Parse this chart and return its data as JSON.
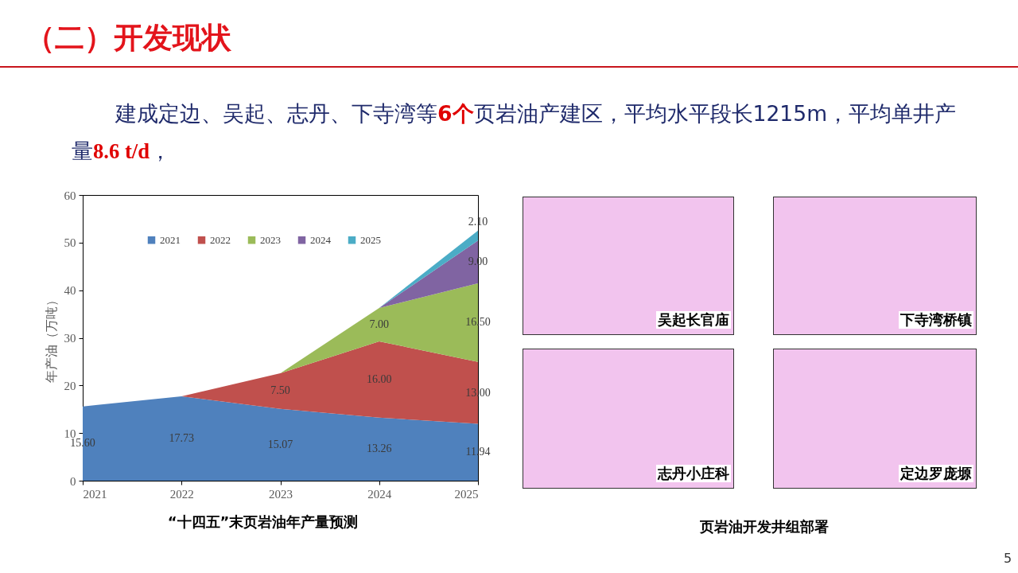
{
  "chart_data": {
    "type": "area",
    "title": "“十四五”末页岩油年产量预测",
    "ylabel": "年产油（万吨）",
    "x": [
      2021,
      2022,
      2023,
      2024,
      2025
    ],
    "xlim": [
      2021,
      2025
    ],
    "xticks": [
      2021,
      2022,
      2023,
      2024,
      2025
    ],
    "ylim": [
      0,
      60
    ],
    "yticks": [
      0,
      10,
      20,
      30,
      40,
      50,
      60
    ],
    "stacked": true,
    "legend": "top",
    "series": [
      {
        "name": "2021",
        "color": "#4f81bd",
        "values": [
          15.6,
          17.73,
          15.07,
          13.26,
          11.94
        ],
        "value_labels": [
          "15.60",
          "17.73",
          "15.07",
          "13.26",
          "11.94"
        ]
      },
      {
        "name": "2022",
        "color": "#c0504d",
        "values": [
          null,
          0,
          7.5,
          16,
          13
        ],
        "value_labels": [
          null,
          null,
          "7.50",
          "16.00",
          "13.00"
        ]
      },
      {
        "name": "2023",
        "color": "#9bbb59",
        "values": [
          null,
          null,
          0,
          7,
          16.5
        ],
        "value_labels": [
          null,
          null,
          null,
          "7.00",
          "16.50"
        ]
      },
      {
        "name": "2024",
        "color": "#8064a2",
        "values": [
          null,
          null,
          null,
          0,
          9
        ],
        "value_labels": [
          null,
          null,
          null,
          null,
          "9.00"
        ]
      },
      {
        "name": "2025",
        "color": "#4bacc6",
        "values": [
          null,
          null,
          null,
          0,
          2.1
        ],
        "value_labels": [
          null,
          null,
          null,
          null,
          "2.10"
        ]
      }
    ],
    "annotations": [
      "（二）开发现状",
      "建成定边、吴起、志丹、下寺湾等",
      "6个",
      "页岩油产建区，平均水平段长1215m，平均单井产",
      "量",
      "8.6 t/d",
      "，",
      "页岩油开发井组部署",
      "吴起长官庙",
      "下寺湾桥镇",
      "志丹小庄科",
      "定边罗庞塬",
      "5"
    ]
  }
}
